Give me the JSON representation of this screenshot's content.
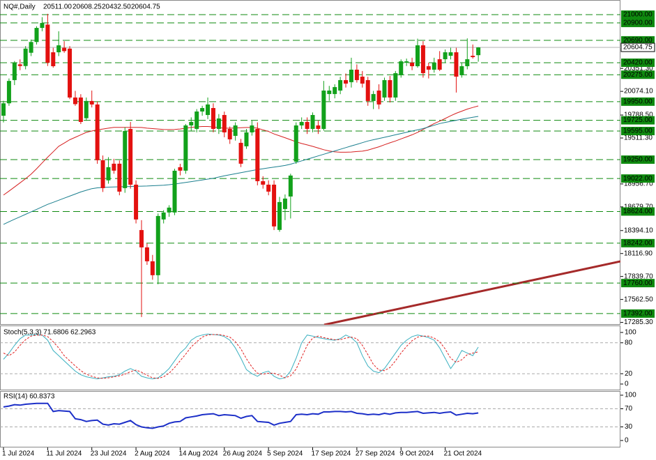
{
  "chart_data": {
    "type": "candlestick",
    "title": "NQ#,Daily",
    "header_values": [
      "20511.00",
      "20608.25",
      "20432.50",
      "20604.75"
    ],
    "categories": [
      "1 Jul 2024",
      null,
      null,
      null,
      null,
      null,
      null,
      null,
      "11 Jul 2024",
      null,
      null,
      null,
      null,
      null,
      null,
      null,
      "23 Jul 2024",
      null,
      null,
      null,
      null,
      null,
      null,
      null,
      "2 Aug 2024",
      null,
      null,
      null,
      null,
      null,
      null,
      null,
      "14 Aug 2024",
      null,
      null,
      null,
      null,
      null,
      null,
      null,
      "26 Aug 2024",
      null,
      null,
      null,
      null,
      null,
      null,
      null,
      "5 Sep 2024",
      null,
      null,
      null,
      null,
      null,
      null,
      null,
      "17 Sep 2024",
      null,
      null,
      null,
      null,
      null,
      null,
      null,
      "27 Sep 2024",
      null,
      null,
      null,
      null,
      null,
      null,
      null,
      "9 Oct 2024",
      null,
      null,
      null,
      null,
      null,
      null,
      null,
      "21 Oct 2024",
      null,
      null,
      null,
      null,
      null,
      null
    ],
    "open": [
      19780,
      19930,
      20210,
      20400,
      20380,
      20540,
      20670,
      20840,
      20880,
      20546,
      20546,
      20600,
      20590,
      20000,
      20000,
      19750,
      19958,
      19916,
      19243,
      19000,
      19201,
      19201,
      18906,
      19621,
      18948,
      18400,
      18191,
      18023,
      17855,
      18528,
      18612,
      18612,
      19159,
      19117,
      19663,
      19621,
      19831,
      19789,
      19873,
      19621,
      19789,
      19621,
      19537,
      19453,
      19411,
      19579,
      19621,
      18990,
      18948,
      18948,
      18402,
      18654,
      18805,
      19226,
      19663,
      19705,
      19621,
      19663,
      19621,
      20042,
      20042,
      20084,
      20210,
      20185,
      20336,
      20252,
      20210,
      19958,
      20084,
      20000,
      20210,
      20000,
      20269,
      20420,
      20420,
      20378,
      20630,
      20378,
      20336,
      20462,
      20462,
      20504,
      20546,
      20269,
      20378,
      20504,
      20511
    ],
    "high": [
      19960,
      20230,
      20440,
      20460,
      20620,
      20700,
      20860,
      20970,
      21010,
      20600,
      20800,
      20680,
      20620,
      20080,
      20040,
      20000,
      20084,
      19950,
      19300,
      19280,
      19260,
      19240,
      19640,
      19705,
      19000,
      18520,
      18240,
      18100,
      18600,
      18640,
      18700,
      19140,
      19200,
      19680,
      19760,
      19860,
      19900,
      20000,
      19930,
      19800,
      19830,
      19650,
      19700,
      19500,
      19620,
      19720,
      19700,
      19050,
      19000,
      19000,
      18800,
      18830,
      19080,
      19700,
      19760,
      19760,
      19820,
      19720,
      20200,
      20140,
      20160,
      20250,
      20290,
      20480,
      20400,
      20320,
      20250,
      20080,
      20160,
      20240,
      20260,
      20320,
      20460,
      20470,
      20480,
      20710,
      20680,
      20420,
      20480,
      20560,
      20580,
      20600,
      20600,
      20420,
      20714,
      20640,
      20608.25
    ],
    "low": [
      19700,
      19900,
      20150,
      20330,
      20340,
      20500,
      20640,
      20800,
      20380,
      20360,
      20500,
      20540,
      19980,
      19900,
      19680,
      19720,
      19880,
      19200,
      18860,
      18960,
      19080,
      18820,
      18850,
      18900,
      18480,
      17350,
      17980,
      17800,
      17746,
      18480,
      18560,
      18580,
      19060,
      19080,
      19600,
      19580,
      19780,
      19740,
      19580,
      19560,
      19520,
      19440,
      19480,
      19160,
      19380,
      19540,
      18940,
      18900,
      18820,
      18400,
      18380,
      18520,
      18540,
      19200,
      19620,
      19560,
      19580,
      19560,
      19600,
      19960,
      19990,
      20040,
      20120,
      20120,
      20180,
      20120,
      19900,
      19860,
      19860,
      19960,
      19940,
      19960,
      20240,
      20380,
      20330,
      20360,
      20240,
      20230,
      20300,
      20320,
      20420,
      20460,
      20060,
      20240,
      20340,
      20470,
      20432.5
    ],
    "close": [
      19930,
      20200,
      20420,
      20380,
      20590,
      20670,
      20840,
      20900,
      20420,
      20378,
      20630,
      20560,
      20000,
      19920,
      19705,
      19958,
      19916,
      19243,
      18906,
      19159,
      19117,
      18864,
      19596,
      18948,
      18528,
      18191,
      18023,
      17855,
      18570,
      18612,
      18671,
      19116,
      19117,
      19663,
      19705,
      19831,
      19873,
      19916,
      19621,
      19747,
      19579,
      19495,
      19663,
      19201,
      19579,
      19663,
      18990,
      18948,
      18864,
      18444,
      18738,
      18780,
      19058,
      19663,
      19705,
      19621,
      19789,
      19621,
      20084,
      20084,
      20126,
      20210,
      20168,
      20336,
      20210,
      20168,
      19958,
      20042,
      19916,
      20210,
      20000,
      20294,
      20437,
      20437,
      20378,
      20630,
      20294,
      20336,
      20420,
      20336,
      20546,
      20546,
      20252,
      20378,
      20462,
      20488,
      20604.75
    ],
    "bull_color": "#12a11b",
    "bear_color": "#e3110f",
    "ylim": [
      17265,
      21177
    ],
    "yticks": [
      {
        "value": 20351.3,
        "label": "20351.30"
      },
      {
        "value": 20074.1,
        "label": "20074.10"
      },
      {
        "value": 19788.5,
        "label": "19788.50"
      },
      {
        "value": 19511.3,
        "label": "19511.30"
      },
      {
        "value": 18956.7,
        "label": "18956.70"
      },
      {
        "value": 18679.7,
        "label": "18679.70"
      },
      {
        "value": 18394.1,
        "label": "18394.10"
      },
      {
        "value": 18116.9,
        "label": "18116.90"
      },
      {
        "value": 17839.7,
        "label": "17839.70"
      },
      {
        "value": 17562.5,
        "label": "17562.50"
      },
      {
        "value": 17285.3,
        "label": "17285.30"
      }
    ],
    "level_color": "#0f8a0f",
    "levels": [
      {
        "value": 21000,
        "label": "21000.00"
      },
      {
        "value": 20900,
        "label": "20900.00"
      },
      {
        "value": 20690,
        "label": "20690.00"
      },
      {
        "value": 20420,
        "label": "20420.00"
      },
      {
        "value": 20275,
        "label": "20275.00"
      },
      {
        "value": 19950,
        "label": "19950.00"
      },
      {
        "value": 19725,
        "label": "19725.00"
      },
      {
        "value": 19595,
        "label": "19595.00"
      },
      {
        "value": 19250,
        "label": "19250.00"
      },
      {
        "value": 19022,
        "label": "19022.00"
      },
      {
        "value": 18624,
        "label": "18624.00"
      },
      {
        "value": 18242,
        "label": "18242.00"
      },
      {
        "value": 17760,
        "label": "17760.00"
      },
      {
        "value": 17392,
        "label": "17392.00"
      }
    ],
    "last_price": {
      "value": 20604.75,
      "label": "20604.75"
    },
    "moving_averages": [
      {
        "color": "#d62020",
        "values": [
          18822,
          18870,
          18920,
          18970,
          19020,
          19075,
          19140,
          19210,
          19280,
          19345,
          19411,
          19450,
          19490,
          19520,
          19550,
          19579,
          19595,
          19610,
          19620,
          19630,
          19640,
          19640,
          19640,
          19640,
          19640,
          19638,
          19630,
          19625,
          19620,
          19615,
          19613,
          19615,
          19620,
          19630,
          19640,
          19646,
          19650,
          19650,
          19645,
          19635,
          19630,
          19630,
          19632,
          19635,
          19638,
          19638,
          19630,
          19610,
          19590,
          19560,
          19537,
          19515,
          19490,
          19465,
          19445,
          19428,
          19410,
          19390,
          19370,
          19355,
          19344,
          19340,
          19340,
          19342,
          19348,
          19352,
          19365,
          19385,
          19405,
          19430,
          19453,
          19475,
          19500,
          19525,
          19550,
          19579,
          19615,
          19650,
          19685,
          19715,
          19747,
          19780,
          19810,
          19835,
          19860,
          19880,
          19898
        ]
      },
      {
        "color": "#1a7f8e",
        "values": [
          18469,
          18500,
          18530,
          18560,
          18590,
          18620,
          18650,
          18680,
          18710,
          18735,
          18760,
          18785,
          18810,
          18835,
          18860,
          18880,
          18900,
          18910,
          18915,
          18918,
          18920,
          18922,
          18924,
          18926,
          18928,
          18930,
          18932,
          18935,
          18938,
          18942,
          18948,
          18955,
          18965,
          18975,
          18985,
          18995,
          19005,
          19015,
          19025,
          19040,
          19055,
          19068,
          19080,
          19092,
          19105,
          19118,
          19130,
          19140,
          19150,
          19160,
          19170,
          19180,
          19195,
          19215,
          19235,
          19255,
          19275,
          19295,
          19315,
          19335,
          19355,
          19375,
          19395,
          19415,
          19435,
          19455,
          19475,
          19490,
          19505,
          19520,
          19535,
          19550,
          19565,
          19580,
          19595,
          19610,
          19625,
          19645,
          19665,
          19685,
          19700,
          19712,
          19725,
          19738,
          19750,
          19762,
          19772
        ]
      }
    ],
    "stochastic": {
      "label": "Stoch(5,3,3) 71.6806 62.2963",
      "ylim": [
        0,
        100
      ],
      "yticks": [
        100,
        80,
        20,
        0
      ],
      "levels": [
        80,
        20
      ],
      "main": {
        "color": "#3ab0c0",
        "values": [
          48,
          60,
          75,
          88,
          95,
          95,
          96,
          95,
          85,
          65,
          55,
          45,
          35,
          25,
          18,
          14,
          12,
          10,
          12,
          14,
          15,
          18,
          25,
          30,
          25,
          15,
          12,
          10,
          12,
          20,
          30,
          45,
          60,
          70,
          85,
          92,
          95,
          97,
          96,
          95,
          92,
          85,
          70,
          50,
          28,
          20,
          15,
          22,
          25,
          15,
          10,
          12,
          25,
          50,
          80,
          95,
          93,
          90,
          88,
          86,
          85,
          88,
          95,
          90,
          80,
          55,
          35,
          25,
          22,
          30,
          45,
          60,
          75,
          85,
          92,
          95,
          93,
          90,
          85,
          70,
          50,
          30,
          45,
          65,
          60,
          55,
          71.6806
        ]
      },
      "signal": {
        "color": "#e02020",
        "values": [
          60,
          55,
          62,
          75,
          86,
          93,
          95,
          95,
          92,
          82,
          70,
          55,
          45,
          35,
          26,
          19,
          15,
          12,
          11,
          12,
          14,
          16,
          19,
          24,
          27,
          23,
          17,
          12,
          11,
          14,
          21,
          32,
          45,
          58,
          72,
          82,
          91,
          95,
          96,
          96,
          94,
          91,
          82,
          68,
          49,
          33,
          21,
          19,
          21,
          21,
          17,
          12,
          16,
          29,
          52,
          75,
          89,
          93,
          90,
          88,
          86,
          86,
          89,
          91,
          88,
          75,
          57,
          38,
          27,
          26,
          32,
          45,
          60,
          73,
          84,
          91,
          93,
          93,
          89,
          82,
          68,
          50,
          42,
          47,
          57,
          60,
          62.2963
        ]
      }
    },
    "rsi": {
      "label": "RSI(14) 60.8373",
      "ylim": [
        0,
        100
      ],
      "yticks": [
        100,
        70,
        30,
        0
      ],
      "levels": [
        70,
        30
      ],
      "color": "#1c2fc8",
      "values": [
        74,
        76,
        79,
        78,
        80,
        81,
        82,
        82,
        82,
        64,
        66,
        65,
        64,
        48,
        46,
        42,
        44,
        45,
        36,
        34,
        37,
        36,
        40,
        44,
        35,
        30,
        28,
        27,
        30,
        32,
        38,
        41,
        42,
        50,
        52,
        54,
        57,
        58,
        59,
        55,
        57,
        56,
        55,
        49,
        53,
        55,
        42,
        41,
        40,
        34,
        38,
        40,
        42,
        57,
        58,
        57,
        59,
        58,
        63,
        63,
        64,
        64,
        63,
        64,
        60,
        59,
        57,
        58,
        57,
        60,
        58,
        61,
        62,
        62,
        63,
        64,
        60,
        61,
        62,
        60,
        62,
        63,
        56,
        58,
        60,
        59,
        60.8373
      ]
    }
  }
}
